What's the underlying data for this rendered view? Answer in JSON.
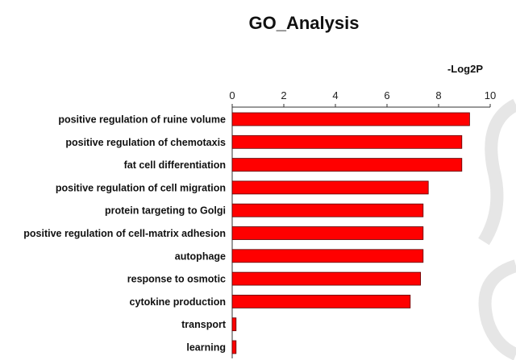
{
  "chart_data": {
    "type": "bar",
    "orientation": "horizontal",
    "title": "GO_Analysis",
    "xlabel": "-Log2P",
    "xlim": [
      0,
      10
    ],
    "xticks": [
      "0",
      "2",
      "4",
      "6",
      "8",
      "10"
    ],
    "grid": false,
    "bar_color": "#ff0000",
    "categories": [
      "positive regulation of ruine volume",
      "positive regulation of chemotaxis",
      "fat cell differentiation",
      "positive regulation of cell migration",
      "protein targeting to Golgi",
      "positive regulation of cell-matrix adhesion",
      "autophage",
      "response to osmotic",
      "cytokine production",
      "transport",
      "learning"
    ],
    "values": [
      9.2,
      8.9,
      8.9,
      7.6,
      7.4,
      7.4,
      7.4,
      7.3,
      6.9,
      0.15,
      0.15
    ]
  }
}
